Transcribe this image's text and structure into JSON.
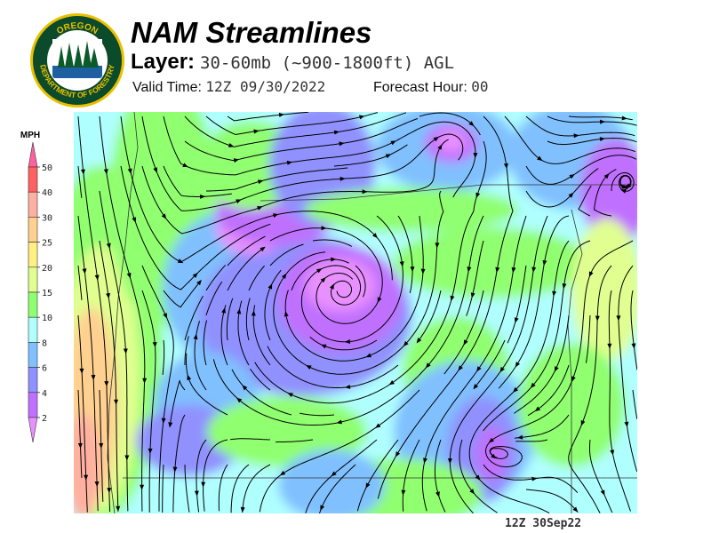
{
  "header": {
    "title": "NAM Streamlines",
    "layer_label": "Layer:",
    "layer_value": "30-60mb (~900-1800ft) AGL",
    "valid_label": "Valid Time:",
    "valid_value": "12Z 09/30/2022",
    "forecast_label": "Forecast Hour:",
    "forecast_value": "00"
  },
  "logo": {
    "text_top": "OREGON",
    "text_bottom": "DEPARTMENT OF FORESTRY"
  },
  "legend": {
    "unit": "MPH",
    "labels": [
      "50",
      "40",
      "30",
      "25",
      "20",
      "15",
      "10",
      "8",
      "6",
      "4",
      "2"
    ],
    "colors": [
      "#ff60a0",
      "#ff6060",
      "#ffb0a0",
      "#ffd090",
      "#fff080",
      "#e0ff90",
      "#90ff70",
      "#b0ffff",
      "#80c0ff",
      "#9090ff",
      "#c070ff",
      "#e890ff"
    ]
  },
  "map": {
    "timestamp": "12Z 30Sep22"
  }
}
